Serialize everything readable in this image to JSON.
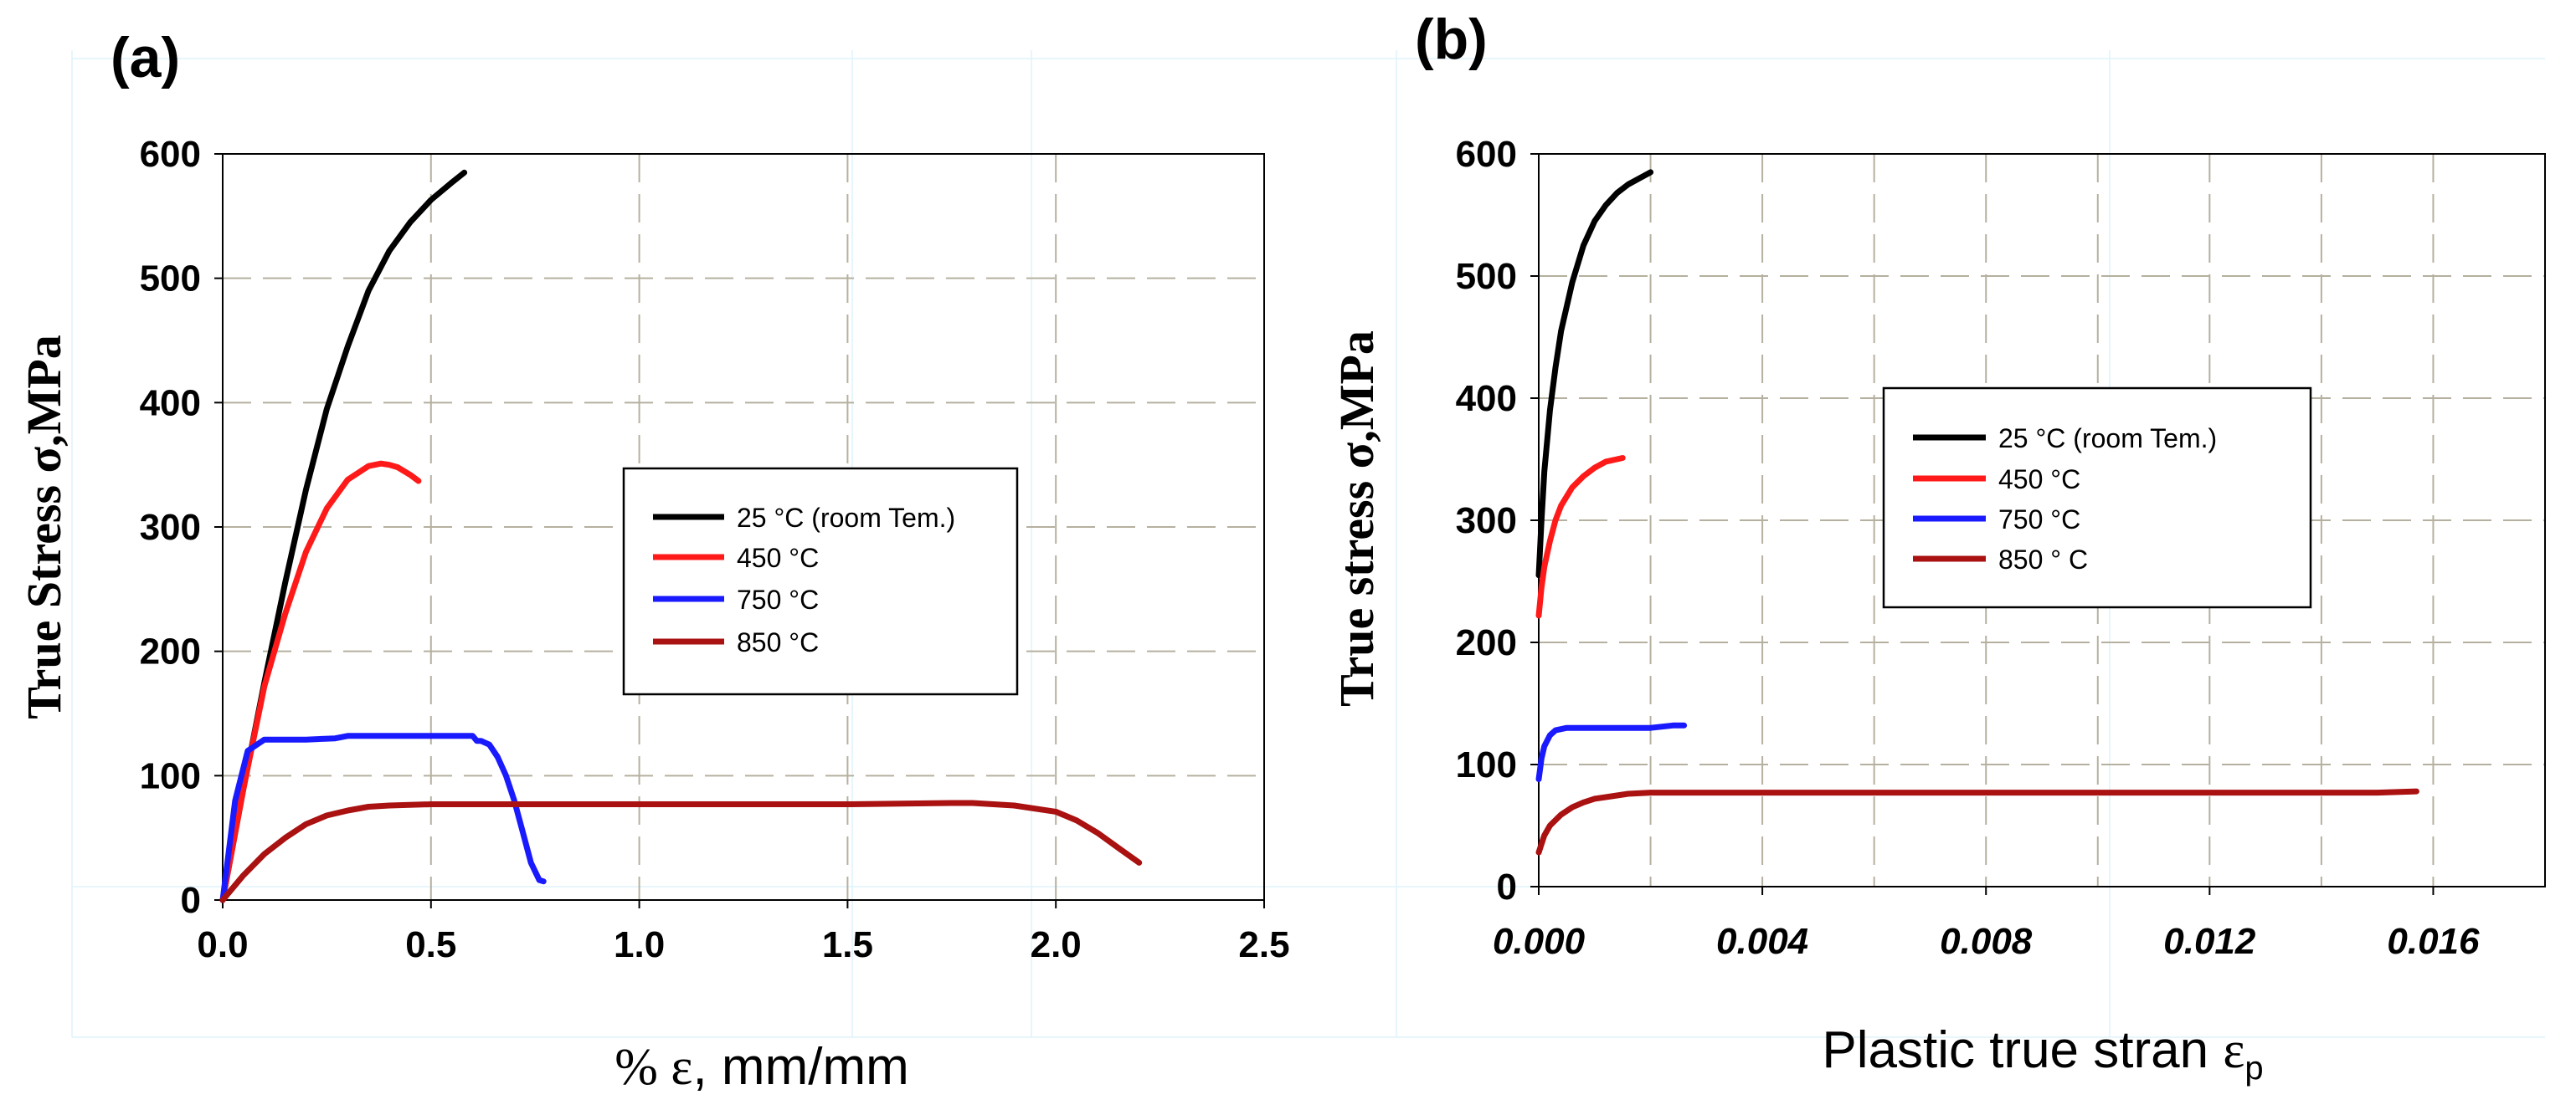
{
  "colors": {
    "black": "#000000",
    "red": "#ff1a1a",
    "blue": "#1a1aff",
    "darkred": "#aa1111",
    "grid": "#b5b09f",
    "bggrid": "#dff4fb"
  },
  "chart_data": [
    {
      "type": "line",
      "panel_label": "(a)",
      "title": "",
      "xlabel_prefix": "% ",
      "xlabel_symbol": "ε",
      "xlabel_suffix": ", mm/mm",
      "ylabel_main": "True Stress ",
      "ylabel_symbol": "σ",
      "ylabel_unit": ",MPa",
      "xlim": [
        0,
        2.5
      ],
      "ylim": [
        0,
        600
      ],
      "xticks": [
        0,
        0.5,
        1.0,
        1.5,
        2.0,
        2.5
      ],
      "xtick_labels": [
        "0.0",
        "0.5",
        "1.0",
        "1.5",
        "2.0",
        "2.5"
      ],
      "yticks": [
        0,
        100,
        200,
        300,
        400,
        500,
        600
      ],
      "ytick_labels": [
        "0",
        "100",
        "200",
        "300",
        "400",
        "500",
        "600"
      ],
      "grid": true,
      "legend_position": "center-right",
      "series": [
        {
          "name": "25 °C (room Tem.)",
          "color": "#000000",
          "x": [
            0,
            0.05,
            0.1,
            0.15,
            0.2,
            0.25,
            0.3,
            0.35,
            0.4,
            0.45,
            0.5,
            0.55,
            0.58
          ],
          "y": [
            0,
            90,
            175,
            255,
            330,
            395,
            445,
            490,
            522,
            545,
            563,
            577,
            585
          ]
        },
        {
          "name": "450 °C",
          "color": "#ff1a1a",
          "x": [
            0,
            0.05,
            0.1,
            0.15,
            0.2,
            0.25,
            0.3,
            0.35,
            0.38,
            0.4,
            0.42,
            0.45,
            0.47
          ],
          "y": [
            0,
            90,
            172,
            230,
            280,
            315,
            338,
            349,
            351,
            350,
            348,
            342,
            337
          ]
        },
        {
          "name": "750 °C",
          "color": "#1a1aff",
          "x": [
            0,
            0.03,
            0.06,
            0.1,
            0.2,
            0.27,
            0.3,
            0.4,
            0.6,
            0.61,
            0.62,
            0.64,
            0.66,
            0.68,
            0.7,
            0.72,
            0.74,
            0.76,
            0.77
          ],
          "y": [
            0,
            80,
            120,
            129,
            129,
            130,
            132,
            132,
            132,
            128,
            128,
            125,
            115,
            100,
            80,
            55,
            30,
            16,
            15
          ]
        },
        {
          "name": "850 °C",
          "color": "#aa1111",
          "x": [
            0,
            0.05,
            0.1,
            0.15,
            0.2,
            0.25,
            0.3,
            0.35,
            0.4,
            0.5,
            0.7,
            1.0,
            1.5,
            1.75,
            1.8,
            1.9,
            2.0,
            2.05,
            2.1,
            2.15,
            2.2
          ],
          "y": [
            0,
            20,
            37,
            50,
            61,
            68,
            72,
            75,
            76,
            77,
            77,
            77,
            77,
            78,
            78,
            76,
            71,
            64,
            54,
            42,
            30
          ]
        }
      ]
    },
    {
      "type": "line",
      "panel_label": "(b)",
      "title": "",
      "xlabel_text": "Plastic true stran ",
      "xlabel_symbol": "ε",
      "xlabel_sub": "p",
      "ylabel_main": "True stress ",
      "ylabel_symbol": "σ",
      "ylabel_unit": ",MPa",
      "xlim": [
        0,
        0.018
      ],
      "ylim": [
        0,
        600
      ],
      "xticks": [
        0,
        0.004,
        0.008,
        0.012,
        0.016
      ],
      "xtick_labels": [
        "0.000",
        "0.004",
        "0.008",
        "0.012",
        "0.016"
      ],
      "yticks": [
        0,
        100,
        200,
        300,
        400,
        500,
        600
      ],
      "ytick_labels": [
        "0",
        "100",
        "200",
        "300",
        "400",
        "500",
        "600"
      ],
      "grid": true,
      "legend_position": "center",
      "series": [
        {
          "name": "25 °C (room Tem.)",
          "color": "#000000",
          "x": [
            0,
            5e-05,
            0.0001,
            0.0002,
            0.0003,
            0.0004,
            0.0006,
            0.0008,
            0.001,
            0.0012,
            0.0014,
            0.0016,
            0.0018,
            0.002
          ],
          "y": [
            255,
            300,
            340,
            390,
            425,
            455,
            495,
            525,
            545,
            558,
            568,
            575,
            580,
            585
          ]
        },
        {
          "name": "450  °C",
          "color": "#ff1a1a",
          "x": [
            0,
            5e-05,
            0.0001,
            0.0002,
            0.0003,
            0.0004,
            0.0006,
            0.0008,
            0.001,
            0.0012,
            0.0014,
            0.0015
          ],
          "y": [
            222,
            245,
            262,
            283,
            300,
            312,
            327,
            336,
            343,
            348,
            350,
            351
          ]
        },
        {
          "name": "750  °C",
          "color": "#1a1aff",
          "x": [
            0,
            5e-05,
            0.0001,
            0.0002,
            0.0003,
            0.0005,
            0.001,
            0.0015,
            0.002,
            0.0024,
            0.0026
          ],
          "y": [
            88,
            105,
            115,
            124,
            128,
            130,
            130,
            130,
            130,
            132,
            132
          ]
        },
        {
          "name": "850 ° C",
          "color": "#aa1111",
          "x": [
            0,
            0.0001,
            0.0002,
            0.0004,
            0.0006,
            0.0008,
            0.001,
            0.0013,
            0.0016,
            0.002,
            0.004,
            0.008,
            0.012,
            0.015,
            0.0157
          ],
          "y": [
            28,
            42,
            50,
            59,
            65,
            69,
            72,
            74,
            76,
            77,
            77,
            77,
            77,
            77,
            78
          ]
        }
      ]
    }
  ]
}
